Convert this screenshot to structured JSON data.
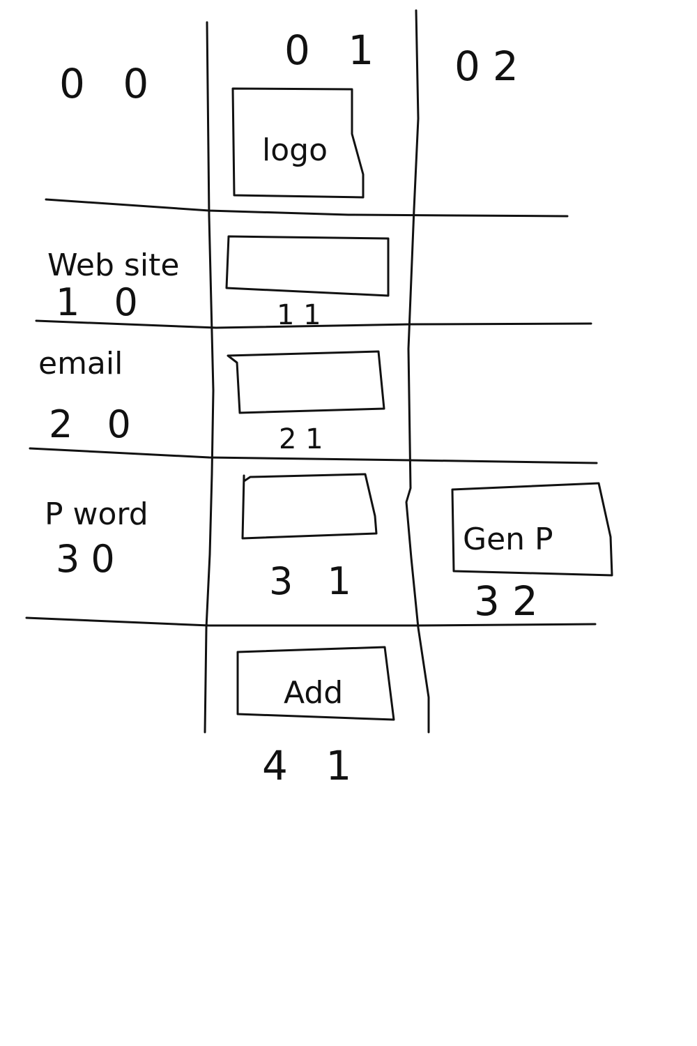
{
  "grid": {
    "row0": {
      "cell_00": "0 0",
      "cell_01": "0 1",
      "cell_02": "02",
      "logo_label": "logo"
    },
    "row1": {
      "label": "Web site",
      "cell_10": "1 0",
      "cell_11": "1 1"
    },
    "row2": {
      "label": "email",
      "cell_20": "2 0",
      "cell_21": "2 1"
    },
    "row3": {
      "label": "P word",
      "cell_30": "30",
      "cell_31": "3 1",
      "gen_label": "Gen P",
      "cell_32": "32"
    },
    "row4": {
      "add_label": "Add",
      "cell_41": "4 1"
    }
  }
}
